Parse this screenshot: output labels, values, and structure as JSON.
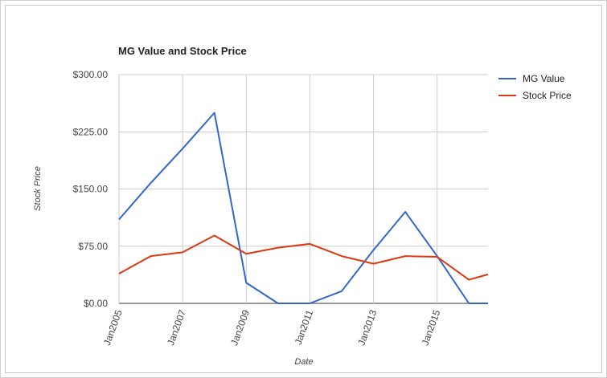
{
  "chart_data": {
    "type": "line",
    "title": "MG Value and Stock Price",
    "x_label": "Date",
    "y_label": "Stock Price",
    "x": [
      2005,
      2006,
      2007,
      2008,
      2009,
      2010,
      2011,
      2012,
      2013,
      2014,
      2015,
      2016,
      2016.6
    ],
    "series": [
      {
        "name": "MG Value",
        "color": "#3366cc",
        "values": [
          110,
          158,
          203,
          250,
          27,
          0,
          0,
          16,
          70,
          120,
          62,
          0,
          0
        ]
      },
      {
        "name": "Stock Price",
        "color": "#dc3912",
        "values": [
          39,
          62,
          67,
          89,
          65,
          73,
          78,
          62,
          52,
          62,
          61,
          31,
          38
        ]
      }
    ],
    "xlim": [
      2005,
      2016.6
    ],
    "xticks": [
      {
        "value": 2005,
        "label": "Jan2005"
      },
      {
        "value": 2007,
        "label": "Jan2007"
      },
      {
        "value": 2009,
        "label": "Jan2009"
      },
      {
        "value": 2011,
        "label": "Jan2011"
      },
      {
        "value": 2013,
        "label": "Jan2013"
      },
      {
        "value": 2015,
        "label": "Jan2015"
      }
    ],
    "ylim": [
      0,
      300
    ],
    "yticks": [
      {
        "value": 0,
        "label": "$0.00"
      },
      {
        "value": 75,
        "label": "$75.00"
      },
      {
        "value": 150,
        "label": "$150.00"
      },
      {
        "value": 225,
        "label": "$225.00"
      },
      {
        "value": 300,
        "label": "$300.00"
      }
    ],
    "grid": true,
    "legend": "right"
  }
}
